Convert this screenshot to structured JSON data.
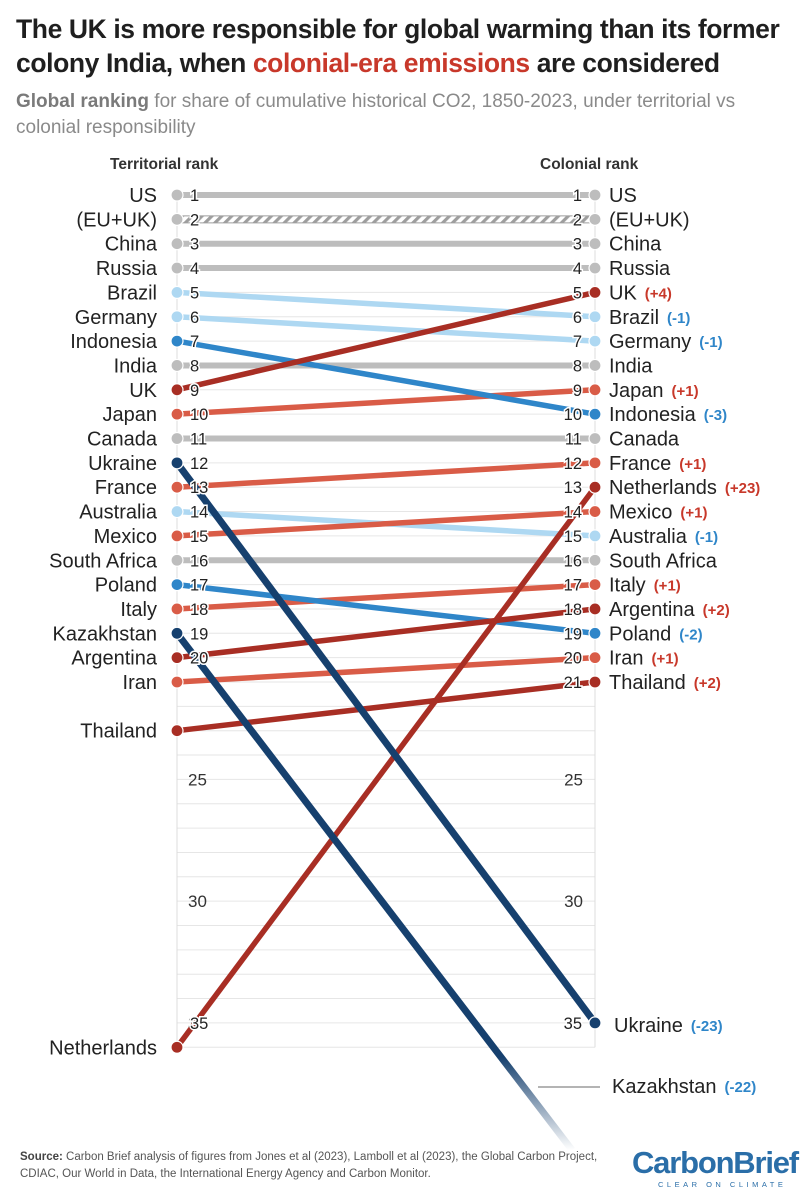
{
  "header": {
    "title_part1": "The UK is more responsible for global warming than its former colony India, when ",
    "title_highlight": "colonial-era emissions",
    "title_part2": " are considered",
    "subtitle_bold": "Global ranking",
    "subtitle_rest": " for share of cumulative historical CO2, 1850-2023, under territorial vs colonial responsibility"
  },
  "chart_data": {
    "type": "slope",
    "left_axis_label": "Territorial rank",
    "right_axis_label": "Colonial rank",
    "y_ticks": [
      25,
      30,
      35
    ],
    "colors": {
      "unchanged": "#bdbdbd",
      "gain_small": "#d95c47",
      "gain_large": "#a82e24",
      "loss_small": "#aed8f2",
      "loss_mid": "#2f86c9",
      "loss_large": "#16406e",
      "positive_text": "#c8382a",
      "negative_text": "#2f86c9"
    },
    "series": [
      {
        "name": "US",
        "territorial": 1,
        "colonial": 1,
        "change": "",
        "color": "unchanged"
      },
      {
        "name": "(EU+UK)",
        "territorial": 2,
        "colonial": 2,
        "change": "",
        "color": "unchanged",
        "dashed": true
      },
      {
        "name": "China",
        "territorial": 3,
        "colonial": 3,
        "change": "",
        "color": "unchanged"
      },
      {
        "name": "Russia",
        "territorial": 4,
        "colonial": 4,
        "change": "",
        "color": "unchanged"
      },
      {
        "name": "Brazil",
        "territorial": 5,
        "colonial": 6,
        "change": "(-1)",
        "color": "loss_small"
      },
      {
        "name": "Germany",
        "territorial": 6,
        "colonial": 7,
        "change": "(-1)",
        "color": "loss_small"
      },
      {
        "name": "Indonesia",
        "territorial": 7,
        "colonial": 10,
        "change": "(-3)",
        "color": "loss_mid"
      },
      {
        "name": "India",
        "territorial": 8,
        "colonial": 8,
        "change": "",
        "color": "unchanged"
      },
      {
        "name": "UK",
        "territorial": 9,
        "colonial": 5,
        "change": "(+4)",
        "color": "gain_large"
      },
      {
        "name": "Japan",
        "territorial": 10,
        "colonial": 9,
        "change": "(+1)",
        "color": "gain_small"
      },
      {
        "name": "Canada",
        "territorial": 11,
        "colonial": 11,
        "change": "",
        "color": "unchanged"
      },
      {
        "name": "Ukraine",
        "territorial": 12,
        "colonial": 35,
        "change": "(-23)",
        "color": "loss_large"
      },
      {
        "name": "France",
        "territorial": 13,
        "colonial": 12,
        "change": "(+1)",
        "color": "gain_small"
      },
      {
        "name": "Australia",
        "territorial": 14,
        "colonial": 15,
        "change": "(-1)",
        "color": "loss_small"
      },
      {
        "name": "Mexico",
        "territorial": 15,
        "colonial": 14,
        "change": "(+1)",
        "color": "gain_small"
      },
      {
        "name": "South Africa",
        "territorial": 16,
        "colonial": 16,
        "change": "",
        "color": "unchanged"
      },
      {
        "name": "Poland",
        "territorial": 17,
        "colonial": 19,
        "change": "(-2)",
        "color": "loss_mid"
      },
      {
        "name": "Italy",
        "territorial": 18,
        "colonial": 17,
        "change": "(+1)",
        "color": "gain_small"
      },
      {
        "name": "Kazakhstan",
        "territorial": 19,
        "colonial": 41,
        "change": "(-22)",
        "color": "loss_large"
      },
      {
        "name": "Argentina",
        "territorial": 20,
        "colonial": 18,
        "change": "(+2)",
        "color": "gain_large"
      },
      {
        "name": "Iran",
        "territorial": 21,
        "colonial": 20,
        "change": "(+1)",
        "color": "gain_small"
      },
      {
        "name": "Thailand",
        "territorial": 23,
        "colonial": 21,
        "change": "(+2)",
        "color": "gain_large"
      },
      {
        "name": "Netherlands",
        "territorial": 36,
        "colonial": 13,
        "change": "(+23)",
        "color": "gain_large"
      }
    ]
  },
  "footer": {
    "source_label": "Source:",
    "source_text": " Carbon Brief analysis of figures from Jones et al (2023), Lamboll et al (2023), the Global Carbon Project, CDIAC, Our World in Data, the International Energy Agency and Carbon Monitor.",
    "logo_name": "CarbonBrief",
    "logo_tag": "CLEAR ON CLIMATE"
  }
}
